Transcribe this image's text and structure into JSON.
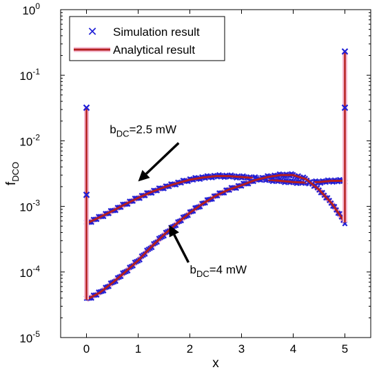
{
  "chart_data": {
    "type": "line",
    "title": "",
    "xlabel": "x",
    "ylabel": "f",
    "ylabel_sub": "DCO",
    "xlim": [
      -0.5,
      5.5
    ],
    "ylim": [
      1e-05,
      1
    ],
    "yscale": "log",
    "grid": false,
    "legend_placement": "top-left",
    "x_ticks": [
      0,
      1,
      2,
      3,
      4,
      5
    ],
    "y_ticks": [
      {
        "value": 1e-05,
        "base": "10",
        "exp": "-5"
      },
      {
        "value": 0.0001,
        "base": "10",
        "exp": "-4"
      },
      {
        "value": 0.001,
        "base": "10",
        "exp": "-3"
      },
      {
        "value": 0.01,
        "base": "10",
        "exp": "-2"
      },
      {
        "value": 0.1,
        "base": "10",
        "exp": "-1"
      },
      {
        "value": 1,
        "base": "10",
        "exp": "0"
      }
    ],
    "legend": [
      {
        "label": "Simulation result",
        "marker": "x",
        "color": "#1f1fd6"
      },
      {
        "label": "Analytical result",
        "line": true,
        "color": "#b51f1f",
        "halo": "#f4b7cf"
      }
    ],
    "series": [
      {
        "annotation": "2.5 mW",
        "x": [
          0,
          0.25,
          0.5,
          0.75,
          1,
          1.25,
          1.5,
          1.75,
          2,
          2.25,
          2.5,
          2.75,
          3,
          3.25,
          3.5,
          3.75,
          4,
          4.25,
          4.5,
          4.75,
          5
        ],
        "y": [
          0.00055,
          0.00068,
          0.00085,
          0.00108,
          0.00135,
          0.00165,
          0.00195,
          0.00225,
          0.00255,
          0.00275,
          0.0029,
          0.0029,
          0.0028,
          0.0027,
          0.00255,
          0.00245,
          0.00235,
          0.0023,
          0.00235,
          0.00245,
          0.00245
        ],
        "spike_left": [
          0.0015,
          0.032
        ],
        "spike_right": [
          0.032,
          0.23
        ]
      },
      {
        "annotation": "4 mW",
        "x": [
          0,
          0.25,
          0.5,
          0.75,
          1,
          1.25,
          1.5,
          1.75,
          2,
          2.25,
          2.5,
          2.75,
          3,
          3.25,
          3.5,
          3.75,
          4,
          4.25,
          4.5,
          4.75,
          5
        ],
        "y": [
          3.8e-05,
          4.8e-05,
          6.8e-05,
          0.0001,
          0.00015,
          0.00024,
          0.00037,
          0.00055,
          0.0008,
          0.0011,
          0.00145,
          0.0018,
          0.0021,
          0.0025,
          0.0028,
          0.003,
          0.003,
          0.0026,
          0.0018,
          0.0011,
          0.00057
        ]
      }
    ],
    "annotations": [
      {
        "label_main": "b",
        "label_sub": "DC",
        "label_rest": "=2.5 mW",
        "arrow_to_x": 1.0,
        "arrow_to_y": 0.0024,
        "text_x": 0.45,
        "text_y": 0.013
      },
      {
        "label_main": "b",
        "label_sub": "DC",
        "label_rest": "=4 mW",
        "arrow_to_x": 1.6,
        "arrow_to_y": 0.00052,
        "text_x": 2.0,
        "text_y": 9.5e-05
      }
    ]
  }
}
